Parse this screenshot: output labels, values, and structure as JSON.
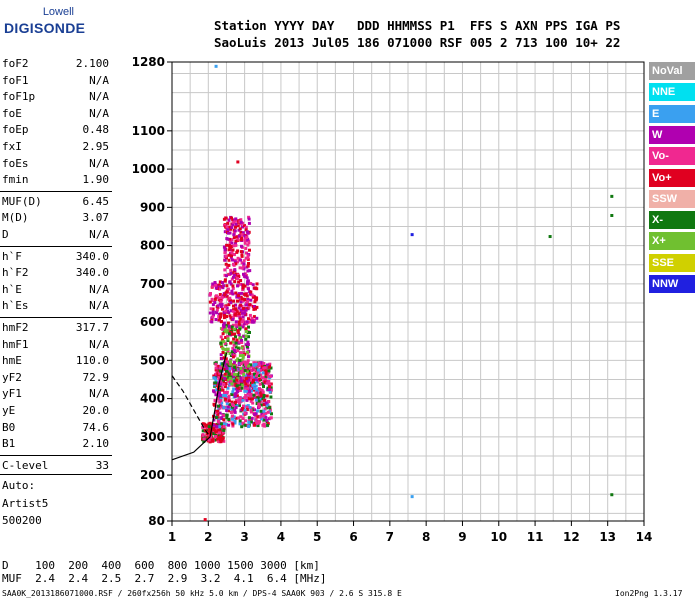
{
  "logo": {
    "line1": "Lowell",
    "line2": "DIGISONDE"
  },
  "header": {
    "line1": "Station YYYY DAY   DDD HHMMSS P1  FFS S AXN PPS IGA PS",
    "line2": "SaoLuis 2013 Jul05 186 071000 RSF 005 2 713 100 10+ 22"
  },
  "params": [
    {
      "k": "foF2",
      "v": "2.100"
    },
    {
      "k": "foF1",
      "v": "N/A"
    },
    {
      "k": "foF1p",
      "v": "N/A"
    },
    {
      "k": "foE",
      "v": "N/A"
    },
    {
      "k": "foEp",
      "v": "0.48"
    },
    {
      "k": "fxI",
      "v": "2.95"
    },
    {
      "k": "foEs",
      "v": "N/A"
    },
    {
      "k": "fmin",
      "v": "1.90"
    },
    {
      "k": "MUF(D)",
      "v": "6.45"
    },
    {
      "k": "M(D)",
      "v": "3.07"
    },
    {
      "k": "D",
      "v": "N/A"
    },
    {
      "k": "h`F",
      "v": "340.0"
    },
    {
      "k": "h`F2",
      "v": "340.0"
    },
    {
      "k": "h`E",
      "v": "N/A"
    },
    {
      "k": "h`Es",
      "v": "N/A"
    },
    {
      "k": "hmF2",
      "v": "317.7"
    },
    {
      "k": "hmF1",
      "v": "N/A"
    },
    {
      "k": "hmE",
      "v": "110.0"
    },
    {
      "k": "yF2",
      "v": "72.9"
    },
    {
      "k": "yF1",
      "v": "N/A"
    },
    {
      "k": "yE",
      "v": "20.0"
    },
    {
      "k": "B0",
      "v": "74.6"
    },
    {
      "k": "B1",
      "v": "2.10"
    },
    {
      "k": "C-level",
      "v": "33"
    }
  ],
  "notes": {
    "auto": "Auto:",
    "artist": "Artist5",
    "code": "500200"
  },
  "legend": [
    {
      "label": "NoVal",
      "color": "#a0a0a0"
    },
    {
      "label": "NNE",
      "color": "#00e0f0"
    },
    {
      "label": "E",
      "color": "#3aa0f0"
    },
    {
      "label": "W",
      "color": "#b000b0"
    },
    {
      "label": "Vo-",
      "color": "#f02890"
    },
    {
      "label": "Vo+",
      "color": "#e00020"
    },
    {
      "label": "SSW",
      "color": "#f0b0a8"
    },
    {
      "label": "X-",
      "color": "#107810"
    },
    {
      "label": "X+",
      "color": "#70c030"
    },
    {
      "label": "SSE",
      "color": "#d0d000"
    },
    {
      "label": "NNW",
      "color": "#2020e0"
    }
  ],
  "bottom": {
    "d_row": "D    100  200  400  600  800 1000 1500 3000 [km]",
    "muf_row": "MUF  2.4  2.4  2.5  2.7  2.9  3.2  4.1  6.4 [MHz]",
    "footer_left": "SAA0K_2013186071000.RSF / 260fx256h 50 kHz 5.0 km / DPS-4 SAA0K 903 / 2.6 S 315.8 E",
    "footer_right": "Ion2Png 1.3.17"
  },
  "chart_data": {
    "type": "scatter",
    "x_ticks": [
      1,
      2,
      3,
      4,
      5,
      6,
      7,
      8,
      9,
      10,
      11,
      12,
      13,
      14
    ],
    "y_ticks": [
      80,
      200,
      300,
      400,
      500,
      600,
      700,
      800,
      900,
      1000,
      1100,
      1280
    ],
    "xlim": [
      1,
      14
    ],
    "ylim": [
      80,
      1280
    ],
    "grid": true,
    "scatter_clusters": [
      {
        "x": [
          1.8,
          2.4
        ],
        "y": [
          290,
          340
        ],
        "n": 180,
        "colors": [
          "#e00020",
          "#f02890",
          "#e00020",
          "#107810"
        ]
      },
      {
        "x": [
          2.1,
          3.7
        ],
        "y": [
          330,
          500
        ],
        "n": 700,
        "colors": [
          "#f02890",
          "#b000b0",
          "#e00020",
          "#f02890",
          "#107810",
          "#3aa0f0"
        ]
      },
      {
        "x": [
          2.3,
          3.1
        ],
        "y": [
          430,
          600
        ],
        "n": 260,
        "colors": [
          "#f02890",
          "#e00020",
          "#b000b0",
          "#107810",
          "#70c030"
        ]
      },
      {
        "x": [
          2.0,
          3.3
        ],
        "y": [
          600,
          710
        ],
        "n": 260,
        "colors": [
          "#b000b0",
          "#f02890",
          "#e00020"
        ]
      },
      {
        "x": [
          2.4,
          3.1
        ],
        "y": [
          710,
          880
        ],
        "n": 200,
        "colors": [
          "#f02890",
          "#e00020",
          "#b000b0"
        ]
      }
    ],
    "scatter_points": [
      {
        "x": 7.6,
        "y": 830,
        "color": "#2020e0"
      },
      {
        "x": 11.4,
        "y": 825,
        "color": "#107810"
      },
      {
        "x": 13.1,
        "y": 930,
        "color": "#107810"
      },
      {
        "x": 13.1,
        "y": 880,
        "color": "#107810"
      },
      {
        "x": 13.1,
        "y": 150,
        "color": "#107810"
      },
      {
        "x": 7.6,
        "y": 145,
        "color": "#3aa0f0"
      },
      {
        "x": 2.8,
        "y": 1020,
        "color": "#e00020"
      },
      {
        "x": 2.2,
        "y": 1270,
        "color": "#3aa0f0"
      },
      {
        "x": 1.9,
        "y": 85,
        "color": "#e00020"
      }
    ],
    "profile_solid": {
      "x": [
        1.0,
        1.6,
        2.05,
        2.2,
        2.3,
        2.5
      ],
      "y": [
        240,
        260,
        300,
        380,
        440,
        520
      ]
    },
    "profile_dashed": {
      "x": [
        1.0,
        1.3,
        1.6,
        1.9,
        2.05
      ],
      "y": [
        460,
        420,
        370,
        320,
        300
      ]
    }
  }
}
